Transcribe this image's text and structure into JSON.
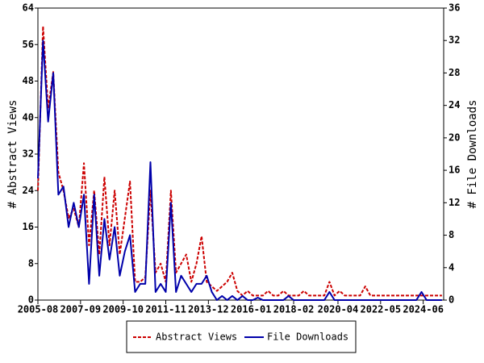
{
  "chart_data": {
    "type": "line",
    "x": [
      "2005-08",
      "2005-11",
      "2006-02",
      "2006-05",
      "2006-08",
      "2006-11",
      "2007-02",
      "2007-05",
      "2007-08",
      "2007-11",
      "2008-02",
      "2008-05",
      "2008-08",
      "2008-11",
      "2009-02",
      "2009-05",
      "2009-08",
      "2009-11",
      "2010-02",
      "2010-05",
      "2010-08",
      "2010-11",
      "2011-02",
      "2011-05",
      "2011-08",
      "2011-11",
      "2012-02",
      "2012-05",
      "2012-08",
      "2012-11",
      "2013-02",
      "2013-05",
      "2013-08",
      "2013-11",
      "2014-02",
      "2014-05",
      "2014-08",
      "2014-11",
      "2015-02",
      "2015-05",
      "2015-08",
      "2015-11",
      "2016-02",
      "2016-05",
      "2016-08",
      "2016-11",
      "2017-02",
      "2017-05",
      "2017-08",
      "2017-11",
      "2018-02",
      "2018-05",
      "2018-08",
      "2018-11",
      "2019-02",
      "2019-05",
      "2019-08",
      "2019-11",
      "2020-02",
      "2020-05",
      "2020-08",
      "2020-11",
      "2021-02",
      "2021-05",
      "2021-08",
      "2021-11",
      "2022-02",
      "2022-05",
      "2022-08",
      "2022-11",
      "2023-02",
      "2023-05",
      "2023-08",
      "2023-11",
      "2024-02",
      "2024-05",
      "2024-08",
      "2024-11",
      "2025-02",
      "2025-05"
    ],
    "series": [
      {
        "name": "Abstract Views",
        "color": "#cc0000",
        "dash": true,
        "values": [
          24,
          60,
          42,
          50,
          28,
          24,
          18,
          20,
          16,
          30,
          12,
          24,
          10,
          27,
          12,
          24,
          10,
          18,
          26,
          4,
          4,
          5,
          24,
          6,
          8,
          4,
          24,
          6,
          8,
          10,
          4,
          8,
          14,
          4,
          3,
          2,
          3,
          4,
          6,
          2,
          1,
          2,
          1,
          1,
          1,
          2,
          1,
          1,
          2,
          1,
          1,
          1,
          2,
          1,
          1,
          1,
          1,
          4,
          1,
          2,
          1,
          1,
          1,
          1,
          3,
          1,
          1,
          1,
          1,
          1,
          1,
          1,
          1,
          1,
          1,
          1,
          1,
          1,
          1,
          1
        ]
      },
      {
        "name": "File Downloads",
        "color": "#0000aa",
        "dash": false,
        "axis": "y2",
        "values": [
          15,
          32,
          22,
          28,
          13,
          14,
          9,
          12,
          9,
          13,
          2,
          13,
          3,
          10,
          5,
          9,
          3,
          6,
          8,
          1,
          2,
          2,
          17,
          1,
          2,
          1,
          12,
          1,
          3,
          2,
          1,
          2,
          2,
          3,
          1,
          0,
          0.5,
          0,
          0.5,
          0,
          0.5,
          0,
          0,
          0.3,
          0,
          0,
          0,
          0,
          0,
          0.5,
          0,
          0,
          0,
          0,
          0,
          0,
          0,
          1,
          0,
          0,
          0,
          0,
          0,
          0,
          0,
          0,
          0,
          0,
          0,
          0,
          0,
          0,
          0,
          0,
          0,
          1,
          0,
          0,
          0,
          0
        ]
      }
    ],
    "y_label": "# Abstract Views",
    "y2_label": "# File Downloads",
    "xlim": [
      "2005-08",
      "2025-06"
    ],
    "xticks": [
      "2005-08",
      "2007-09",
      "2009-10",
      "2011-11",
      "2013-12",
      "2016-01",
      "2018-02",
      "2020-04",
      "2022-05",
      "2024-06"
    ],
    "ylim": [
      0,
      64
    ],
    "yticks": [
      0,
      8,
      16,
      24,
      32,
      40,
      48,
      56,
      64
    ],
    "y2lim": [
      0,
      36
    ],
    "y2ticks": [
      0,
      4,
      8,
      12,
      16,
      20,
      24,
      28,
      32,
      36
    ]
  }
}
